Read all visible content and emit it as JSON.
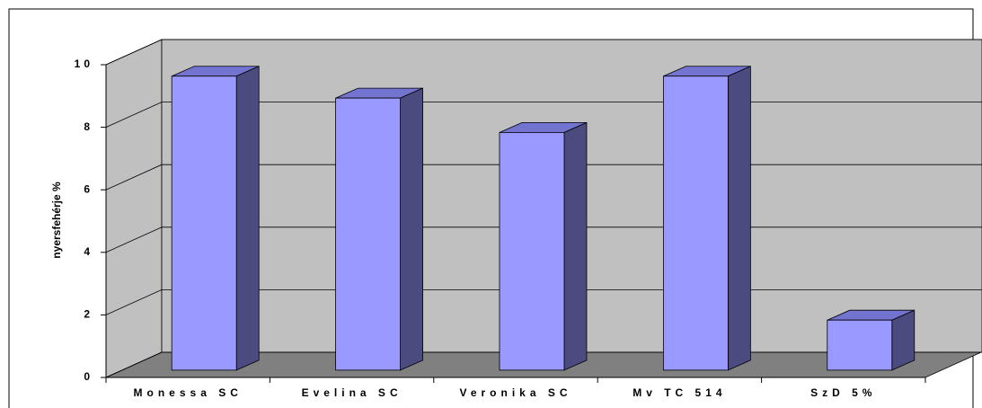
{
  "chart_data": {
    "type": "bar3d",
    "y_label": "nyersfehérje %",
    "categories": [
      "Monessa SC",
      "Evelina SC",
      "Veronika SC",
      "Mv TC 514",
      "SzD 5%"
    ],
    "values": [
      9.4,
      8.7,
      7.6,
      9.4,
      1.6
    ],
    "color": "#9999ff",
    "side_color": "#4b4b80",
    "top_color": "#7373d0",
    "wall_color": "#c0c0c0",
    "floor_color": "#808080",
    "ylim": [
      0,
      10
    ],
    "yticks": [
      0,
      2,
      4,
      6,
      8,
      10
    ],
    "grid": true
  }
}
